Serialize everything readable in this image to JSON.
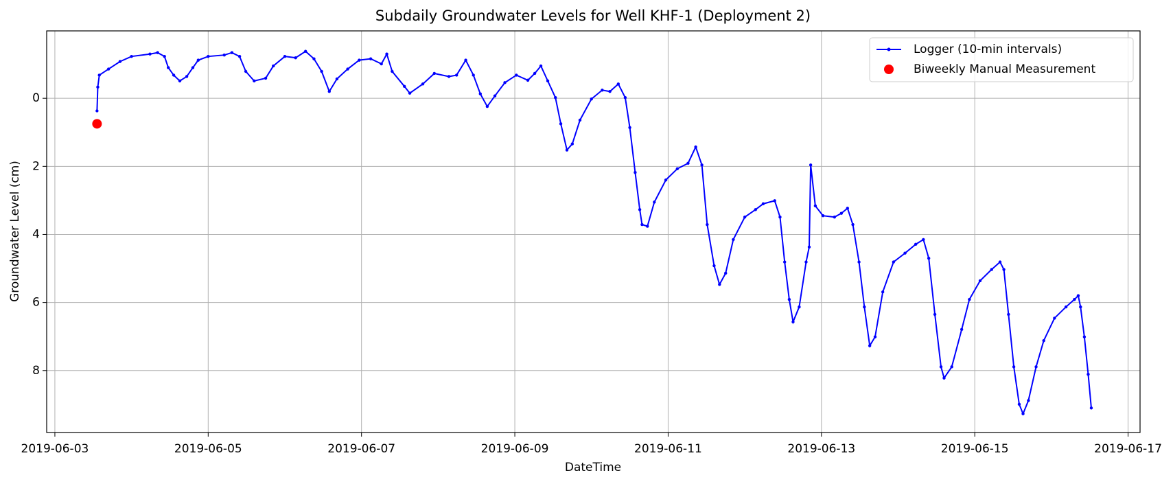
{
  "chart_data": {
    "type": "line",
    "title": "Subdaily Groundwater Levels for Well KHF-1 (Deployment 2)",
    "xlabel": "DateTime",
    "ylabel": "Groundwater Level (cm)",
    "xlim": [
      "2019-06-02 21:26",
      "2019-06-17 03:45"
    ],
    "xticks": [
      "2019-06-03",
      "2019-06-05",
      "2019-06-07",
      "2019-06-09",
      "2019-06-11",
      "2019-06-13",
      "2019-06-15",
      "2019-06-17"
    ],
    "ylim": [
      9.82,
      -1.98
    ],
    "yticks": [
      0,
      2,
      4,
      6,
      8
    ],
    "grid": true,
    "legend": "upper right",
    "series": [
      {
        "name": "Logger (10-min intervals)",
        "type": "line",
        "color": "#0000ff",
        "x": [
          "2019-06-03 13:12",
          "2019-06-03 13:26",
          "2019-06-03 13:55",
          "2019-06-03 16:48",
          "2019-06-03 20:24",
          "2019-06-04 00:00",
          "2019-06-04 05:46",
          "2019-06-04 08:10",
          "2019-06-04 10:19",
          "2019-06-04 11:31",
          "2019-06-04 13:12",
          "2019-06-04 15:07",
          "2019-06-04 17:17",
          "2019-06-04 19:12",
          "2019-06-04 20:53",
          "2019-06-05 00:00",
          "2019-06-05 05:02",
          "2019-06-05 07:26",
          "2019-06-05 09:50",
          "2019-06-05 11:46",
          "2019-06-05 14:24",
          "2019-06-05 18:00",
          "2019-06-05 20:24",
          "2019-06-06 00:00",
          "2019-06-06 03:22",
          "2019-06-06 06:29",
          "2019-06-06 09:07",
          "2019-06-06 11:31",
          "2019-06-06 13:55",
          "2019-06-06 16:19",
          "2019-06-06 19:41",
          "2019-06-06 23:17",
          "2019-06-07 02:53",
          "2019-06-07 06:14",
          "2019-06-07 07:55",
          "2019-06-07 09:36",
          "2019-06-07 13:26",
          "2019-06-07 15:07",
          "2019-06-07 19:12",
          "2019-06-07 22:48",
          "2019-06-08 03:22",
          "2019-06-08 05:46",
          "2019-06-08 08:38",
          "2019-06-08 11:02",
          "2019-06-08 13:12",
          "2019-06-08 15:22",
          "2019-06-08 17:46",
          "2019-06-08 20:53",
          "2019-06-09 00:29",
          "2019-06-09 04:05",
          "2019-06-09 06:14",
          "2019-06-09 08:10",
          "2019-06-09 10:19",
          "2019-06-09 12:43",
          "2019-06-09 14:24",
          "2019-06-09 16:19",
          "2019-06-09 18:00",
          "2019-06-09 20:24",
          "2019-06-10 00:00",
          "2019-06-10 03:22",
          "2019-06-10 05:46",
          "2019-06-10 08:24",
          "2019-06-10 10:34",
          "2019-06-10 12:00",
          "2019-06-10 13:41",
          "2019-06-10 15:07",
          "2019-06-10 15:50",
          "2019-06-10 17:31",
          "2019-06-10 19:41",
          "2019-06-10 23:17",
          "2019-06-11 02:53",
          "2019-06-11 06:14",
          "2019-06-11 08:38",
          "2019-06-11 10:34",
          "2019-06-11 12:14",
          "2019-06-11 14:24",
          "2019-06-11 16:05",
          "2019-06-11 18:00",
          "2019-06-11 20:24",
          "2019-06-12 00:00",
          "2019-06-12 03:22",
          "2019-06-12 05:46",
          "2019-06-12 09:22",
          "2019-06-12 11:02",
          "2019-06-12 12:29",
          "2019-06-12 13:55",
          "2019-06-12 15:07",
          "2019-06-12 17:02",
          "2019-06-12 19:12",
          "2019-06-12 20:10",
          "2019-06-12 20:38",
          "2019-06-12 22:05",
          "2019-06-13 00:29",
          "2019-06-13 04:05",
          "2019-06-13 06:14",
          "2019-06-13 08:10",
          "2019-06-13 09:50",
          "2019-06-13 11:46",
          "2019-06-13 13:26",
          "2019-06-13 15:07",
          "2019-06-13 16:48",
          "2019-06-13 19:12",
          "2019-06-13 22:34",
          "2019-06-14 02:10",
          "2019-06-14 05:31",
          "2019-06-14 07:55",
          "2019-06-14 09:36",
          "2019-06-14 11:31",
          "2019-06-14 13:26",
          "2019-06-14 14:24",
          "2019-06-14 16:48",
          "2019-06-14 19:55",
          "2019-06-14 22:19",
          "2019-06-15 01:41",
          "2019-06-15 05:17",
          "2019-06-15 07:55",
          "2019-06-15 09:07",
          "2019-06-15 10:34",
          "2019-06-15 12:14",
          "2019-06-15 13:55",
          "2019-06-15 15:07",
          "2019-06-15 16:48",
          "2019-06-15 19:12",
          "2019-06-15 21:36",
          "2019-06-16 00:58",
          "2019-06-16 04:34",
          "2019-06-16 07:12",
          "2019-06-16 08:24",
          "2019-06-16 09:07",
          "2019-06-16 10:19",
          "2019-06-16 11:31",
          "2019-06-16 12:29"
        ],
        "values": [
          0.37,
          -0.33,
          -0.68,
          -0.86,
          -1.08,
          -1.23,
          -1.3,
          -1.34,
          -1.23,
          -0.9,
          -0.68,
          -0.51,
          -0.64,
          -0.9,
          -1.12,
          -1.23,
          -1.27,
          -1.34,
          -1.23,
          -0.79,
          -0.51,
          -0.59,
          -0.95,
          -1.23,
          -1.19,
          -1.38,
          -1.16,
          -0.79,
          -0.2,
          -0.57,
          -0.86,
          -1.12,
          -1.16,
          -1.01,
          -1.3,
          -0.79,
          -0.35,
          -0.15,
          -0.42,
          -0.73,
          -0.64,
          -0.68,
          -1.12,
          -0.68,
          -0.13,
          0.24,
          -0.07,
          -0.46,
          -0.68,
          -0.53,
          -0.73,
          -0.95,
          -0.51,
          -0.02,
          0.75,
          1.52,
          1.34,
          0.64,
          0.02,
          -0.24,
          -0.2,
          -0.42,
          -0.02,
          0.86,
          2.18,
          3.27,
          3.71,
          3.76,
          3.05,
          2.4,
          2.07,
          1.91,
          1.43,
          1.96,
          3.71,
          4.92,
          5.47,
          5.14,
          4.15,
          3.49,
          3.27,
          3.1,
          3.01,
          3.49,
          4.81,
          5.91,
          6.57,
          6.13,
          4.81,
          4.37,
          1.96,
          3.16,
          3.45,
          3.49,
          3.38,
          3.23,
          3.71,
          4.81,
          6.13,
          7.27,
          7.01,
          5.69,
          4.81,
          4.55,
          4.29,
          4.15,
          4.7,
          6.35,
          7.89,
          8.22,
          7.89,
          6.79,
          5.91,
          5.36,
          5.03,
          4.81,
          5.03,
          6.35,
          7.89,
          8.99,
          9.27,
          8.88,
          7.89,
          7.12,
          6.46,
          6.13,
          5.91,
          5.8,
          6.13,
          7.01,
          8.11,
          9.1
        ]
      },
      {
        "name": "Biweekly Manual Measurement",
        "type": "scatter",
        "color": "#ff0000",
        "x": [
          "2019-06-03 13:12"
        ],
        "values": [
          0.75
        ]
      }
    ]
  }
}
